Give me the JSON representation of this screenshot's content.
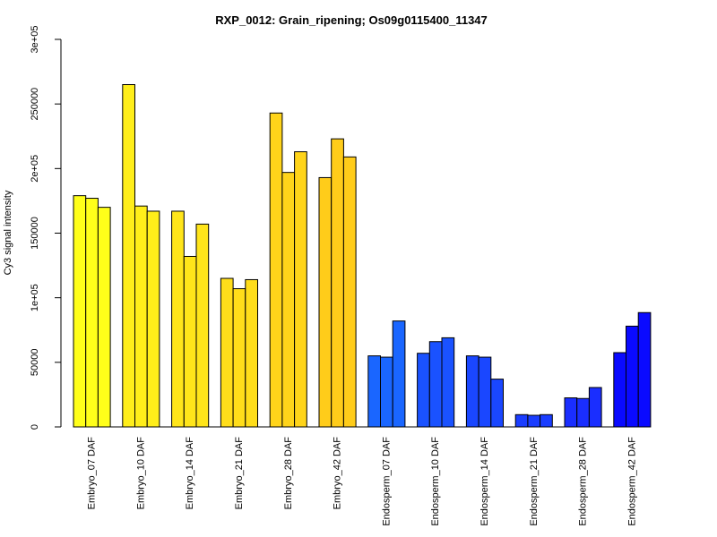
{
  "chart_data": {
    "type": "bar",
    "title": "RXP_0012: Grain_ripening; Os09g0115400_11347",
    "xlabel": "",
    "ylabel": "Cy3 signal intensity",
    "ylim": [
      0,
      300000
    ],
    "y_ticks": [
      {
        "value": 0,
        "label": "0"
      },
      {
        "value": 50000,
        "label": "50000"
      },
      {
        "value": 100000,
        "label": "1e+05"
      },
      {
        "value": 150000,
        "label": "150000"
      },
      {
        "value": 200000,
        "label": "2e+05"
      },
      {
        "value": 250000,
        "label": "250000"
      },
      {
        "value": 300000,
        "label": "3e+05"
      }
    ],
    "groups": [
      {
        "label": "Embryo_07 DAF",
        "color": "#ffff1a",
        "values": [
          179000,
          177000,
          170000
        ]
      },
      {
        "label": "Embryo_10 DAF",
        "color": "#ffee1a",
        "values": [
          265000,
          171000,
          167000
        ]
      },
      {
        "label": "Embryo_14 DAF",
        "color": "#ffe51a",
        "values": [
          167000,
          132000,
          157000
        ]
      },
      {
        "label": "Embryo_21 DAF",
        "color": "#ffdd1a",
        "values": [
          115000,
          107000,
          114000
        ]
      },
      {
        "label": "Embryo_28 DAF",
        "color": "#ffd41a",
        "values": [
          243000,
          197000,
          213000
        ]
      },
      {
        "label": "Embryo_42 DAF",
        "color": "#ffcc1a",
        "values": [
          193000,
          223000,
          209000
        ]
      },
      {
        "label": "Endosperm_07 DAF",
        "color": "#1a66ff",
        "values": [
          55000,
          54000,
          82000
        ]
      },
      {
        "label": "Endosperm_10 DAF",
        "color": "#1a52ff",
        "values": [
          57000,
          66000,
          69000
        ]
      },
      {
        "label": "Endosperm_14 DAF",
        "color": "#1a47ff",
        "values": [
          55000,
          54000,
          37000
        ]
      },
      {
        "label": "Endosperm_21 DAF",
        "color": "#1a3dff",
        "values": [
          9500,
          9000,
          9500
        ]
      },
      {
        "label": "Endosperm_28 DAF",
        "color": "#1a2eff",
        "values": [
          22500,
          22000,
          30500
        ]
      },
      {
        "label": "Endosperm_42 DAF",
        "color": "#0a0aff",
        "values": [
          57500,
          78000,
          88500
        ]
      }
    ]
  }
}
